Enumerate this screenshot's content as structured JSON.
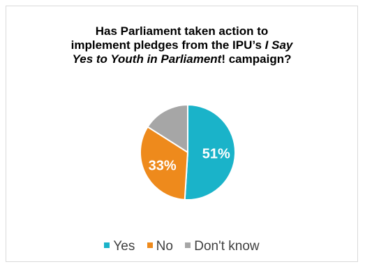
{
  "chart_data": {
    "type": "pie",
    "title_lines": [
      [
        {
          "text": "Has Parliament taken action to",
          "italic": false
        }
      ],
      [
        {
          "text": "implement pledges from the IPU’s ",
          "italic": false
        },
        {
          "text": "I Say",
          "italic": true
        }
      ],
      [
        {
          "text": "Yes to Youth in Parliament",
          "italic": true
        },
        {
          "text": "! campaign?",
          "italic": false
        }
      ]
    ],
    "slices": [
      {
        "name": "Yes",
        "value": 51,
        "label": "51%",
        "color": "#1ab3c9"
      },
      {
        "name": "No",
        "value": 33,
        "label": "33%",
        "color": "#ee8a1c"
      },
      {
        "name": "Don't know",
        "value": 16,
        "label": "",
        "color": "#a6a6a6"
      }
    ],
    "legend_position": "bottom",
    "start_angle": "12 o'clock",
    "direction": "clockwise"
  }
}
